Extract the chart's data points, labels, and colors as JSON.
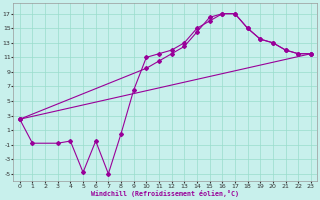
{
  "xlabel": "Windchill (Refroidissement éolien,°C)",
  "bg_color": "#c8f0ec",
  "line_color": "#990099",
  "grid_color": "#99ddcc",
  "xlim": [
    -0.5,
    23.5
  ],
  "ylim": [
    -6.0,
    18.5
  ],
  "xticks": [
    0,
    1,
    2,
    3,
    4,
    5,
    6,
    7,
    8,
    9,
    10,
    11,
    12,
    13,
    14,
    15,
    16,
    17,
    18,
    19,
    20,
    21,
    22,
    23
  ],
  "yticks": [
    -5,
    -3,
    -1,
    1,
    3,
    5,
    7,
    9,
    11,
    13,
    15,
    17
  ],
  "line1_x": [
    0,
    1,
    3,
    4,
    5,
    6,
    7,
    8,
    9,
    10,
    11,
    12,
    13,
    14,
    15,
    16,
    17,
    18,
    19,
    20,
    21,
    22,
    23
  ],
  "line1_y": [
    2.5,
    -0.8,
    -0.8,
    -0.5,
    -4.8,
    -0.5,
    -5.0,
    0.5,
    6.5,
    11.0,
    11.5,
    12.0,
    13.0,
    15.0,
    16.0,
    17.0,
    17.0,
    15.0,
    13.5,
    13.0,
    12.0,
    11.5,
    11.5
  ],
  "line2_x": [
    0,
    10,
    11,
    12,
    13,
    14,
    15,
    16,
    17,
    18,
    19,
    20,
    21,
    22,
    23
  ],
  "line2_y": [
    2.5,
    9.5,
    10.5,
    11.5,
    12.5,
    14.5,
    16.5,
    17.0,
    17.0,
    15.0,
    13.5,
    13.0,
    12.0,
    11.5,
    11.5
  ],
  "line3_x": [
    0,
    23
  ],
  "line3_y": [
    2.5,
    11.5
  ],
  "marker": "D",
  "marker_size": 2.0,
  "line_width": 0.8
}
